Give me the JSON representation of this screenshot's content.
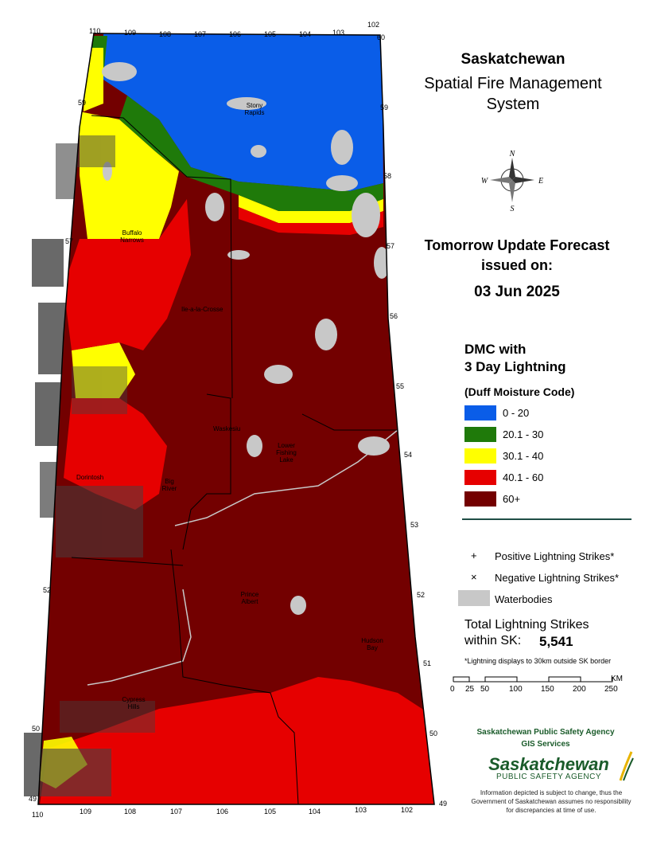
{
  "title": {
    "line1": "Saskatchewan",
    "line2": "Spatial Fire Management",
    "line3": "System"
  },
  "forecast": {
    "line1": "Tomorrow Update Forecast",
    "line2": "issued on:",
    "date": "03 Jun 2025"
  },
  "legend": {
    "title1": "DMC with",
    "title2": "3 Day Lightning",
    "subtitle": "(Duff Moisture Code)",
    "classes": [
      {
        "label": "0 - 20",
        "color": "#0a5de8"
      },
      {
        "label": "20.1 - 30",
        "color": "#1f7a0a"
      },
      {
        "label": "30.1 - 40",
        "color": "#ffff00"
      },
      {
        "label": "40.1 - 60",
        "color": "#e60000"
      },
      {
        "label": "60+",
        "color": "#730000"
      }
    ],
    "positive_symbol": "+",
    "positive_label": "Positive Lightning Strikes*",
    "negative_symbol": "×",
    "negative_label": "Negative Lightning Strikes*",
    "water_label": "Waterbodies",
    "water_color": "#c8c8c8"
  },
  "totals": {
    "line1": "Total Lightning Strikes",
    "line2": "within SK:",
    "value": "5,541",
    "note": "*Lightning displays to 30km outside SK border"
  },
  "scale": {
    "ticks": [
      "0",
      "25",
      "50",
      "100",
      "150",
      "200",
      "250"
    ],
    "unit": "KM"
  },
  "credits": {
    "agency": "Saskatchewan Public Safety Agency",
    "dept": "GIS  Services",
    "logo1": "Saskatchewan",
    "logo2": "PUBLIC SAFETY AGENCY",
    "disclaimer": "Information depicted is subject to change, thus the Government of Saskatchewan assumes no responsibility for discrepancies at time of use."
  },
  "compass": {
    "north": "N",
    "south": "S",
    "east": "E",
    "west": "W"
  },
  "places": {
    "stony_rapids": "Stony Rapids",
    "buffalo_narrows": "Buffalo Narrows",
    "ile_a_la_crosse": "Ile-a-la-Crosse",
    "waskesiu": "Waskesiu",
    "lower_fishing_lake": "Lower Fishing Lake",
    "meadow_lake": "Dorintosh",
    "big_river": "Big River",
    "prince_albert": "Prince Albert",
    "hudson_bay": "Hudson Bay",
    "cypress_hills": "Cypress Hills"
  },
  "longitudes_top": [
    "110",
    "109",
    "108",
    "107",
    "106",
    "105",
    "104",
    "103",
    "102"
  ],
  "longitudes_bottom": [
    "110",
    "109",
    "108",
    "107",
    "106",
    "105",
    "104",
    "103",
    "102"
  ],
  "latitudes_left": [
    "59",
    "57",
    "52",
    "50",
    "49"
  ],
  "latitudes_right": [
    "60",
    "59",
    "58",
    "57",
    "56",
    "55",
    "54",
    "53",
    "52",
    "51",
    "50",
    "49"
  ]
}
